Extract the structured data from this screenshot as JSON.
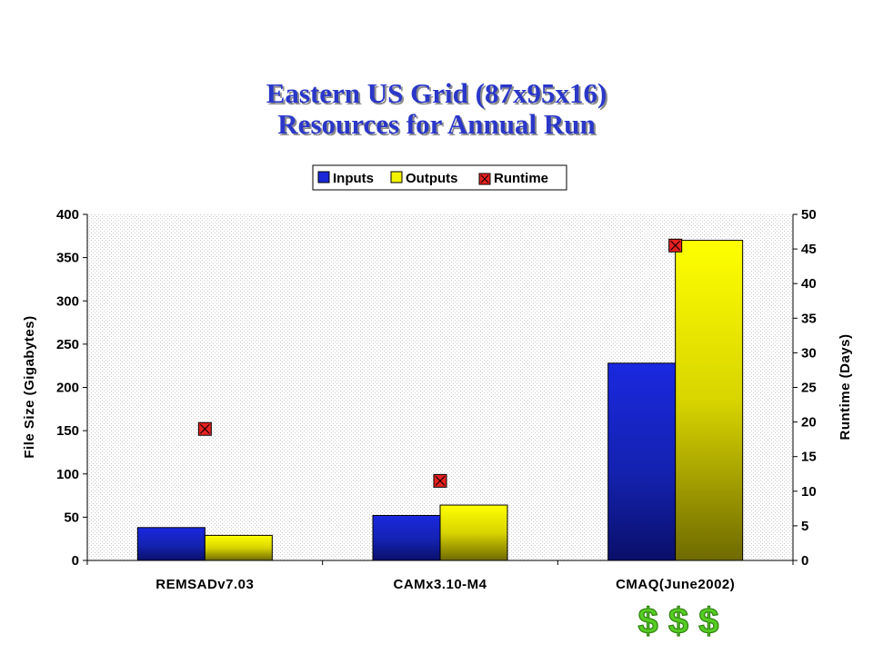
{
  "chart_data": {
    "type": "bar",
    "title_line1": "Eastern US Grid (87x95x16)",
    "title_line2": "Resources for Annual Run",
    "categories": [
      "REMSADv7.03",
      "CAMx3.10-M4",
      "CMAQ(June2002)"
    ],
    "series": [
      {
        "name": "Inputs",
        "axis": "left",
        "values": [
          38,
          52,
          228
        ],
        "color": "#1a28d8"
      },
      {
        "name": "Outputs",
        "axis": "left",
        "values": [
          29,
          64,
          370
        ],
        "color": "#f2f200"
      },
      {
        "name": "Runtime",
        "axis": "right",
        "type": "marker",
        "values": [
          19,
          11.5,
          45.5
        ],
        "color": "#e82020"
      }
    ],
    "ylabel": "File Size (Gigabytes)",
    "y2label": "Runtime (Days)",
    "ylim": [
      0,
      400
    ],
    "yticks": [
      0,
      50,
      100,
      150,
      200,
      250,
      300,
      350,
      400
    ],
    "y2lim": [
      0,
      50
    ],
    "y2ticks": [
      0,
      5,
      10,
      15,
      20,
      25,
      30,
      35,
      40,
      45,
      50
    ],
    "legend_position": "top",
    "grid": false
  },
  "annotation": {
    "text": "$ $ $"
  }
}
